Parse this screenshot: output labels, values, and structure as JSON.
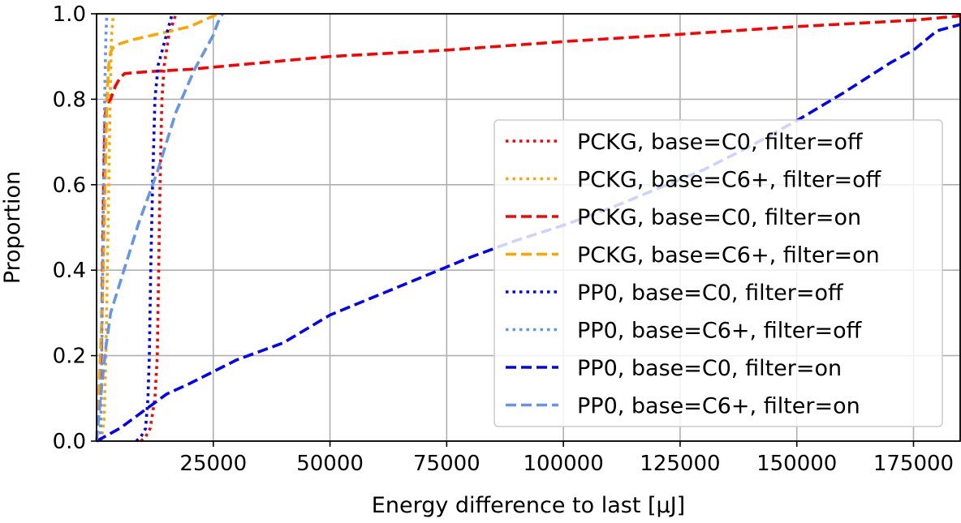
{
  "chart_data": {
    "type": "line",
    "title": "",
    "xlabel": "Energy difference to last [µJ]",
    "ylabel": "Proportion",
    "xlim": [
      0,
      185000
    ],
    "ylim": [
      0,
      1.0
    ],
    "x_ticks": [
      25000,
      50000,
      75000,
      100000,
      125000,
      150000,
      175000
    ],
    "y_ticks": [
      0.0,
      0.2,
      0.4,
      0.6,
      0.8,
      1.0
    ],
    "grid": true,
    "legend_position": "center-right",
    "series": [
      {
        "name": "PCKG, base=C0, filter=off",
        "color": "#ff0000",
        "dash": "dotted",
        "x": [
          9500,
          10500,
          11500,
          12500,
          13000,
          13300,
          13600,
          14000,
          14500,
          15500,
          17000
        ],
        "y": [
          0.0,
          0.01,
          0.03,
          0.1,
          0.2,
          0.4,
          0.6,
          0.8,
          0.88,
          0.95,
          1.0
        ]
      },
      {
        "name": "PCKG, base=C6+, filter=off",
        "color": "#ffa500",
        "dash": "dotted",
        "x": [
          1000,
          1600,
          2000,
          2300,
          2600,
          2900,
          3200,
          3600
        ],
        "y": [
          0.0,
          0.05,
          0.2,
          0.4,
          0.6,
          0.8,
          0.95,
          1.0
        ]
      },
      {
        "name": "PCKG, base=C0, filter=on",
        "color": "#ff0000",
        "dash": "dashed",
        "x": [
          0,
          1000,
          1500,
          1800,
          2200,
          3000,
          4000,
          5000,
          6000,
          8000,
          12000,
          20000,
          30000,
          50000,
          75000,
          100000,
          125000,
          150000,
          175000,
          185000
        ],
        "y": [
          0.0,
          0.2,
          0.6,
          0.76,
          0.79,
          0.8,
          0.83,
          0.85,
          0.86,
          0.862,
          0.865,
          0.87,
          0.88,
          0.9,
          0.915,
          0.935,
          0.952,
          0.97,
          0.985,
          0.995
        ]
      },
      {
        "name": "PCKG, base=C6+, filter=on",
        "color": "#ffa500",
        "dash": "dashed",
        "x": [
          0,
          1200,
          1800,
          2200,
          2600,
          3000,
          3500,
          5000,
          8000,
          12000,
          16000,
          20000,
          24000,
          26000
        ],
        "y": [
          0.0,
          0.3,
          0.6,
          0.8,
          0.88,
          0.91,
          0.92,
          0.93,
          0.94,
          0.95,
          0.96,
          0.97,
          0.99,
          1.0
        ]
      },
      {
        "name": "PP0, base=C0, filter=off",
        "color": "#0000ff",
        "dash": "dotted",
        "x": [
          8500,
          9500,
          10500,
          11000,
          11300,
          11600,
          12000,
          12500,
          13200,
          14200,
          15200,
          16200
        ],
        "y": [
          0.0,
          0.01,
          0.03,
          0.1,
          0.2,
          0.4,
          0.6,
          0.8,
          0.88,
          0.92,
          0.96,
          1.0
        ]
      },
      {
        "name": "PP0, base=C6+, filter=off",
        "color": "#6495ed",
        "dash": "dotted",
        "x": [
          800,
          1000,
          1200,
          1400,
          1600,
          1800,
          2000,
          2200
        ],
        "y": [
          0.0,
          0.1,
          0.3,
          0.5,
          0.7,
          0.85,
          0.95,
          1.0
        ]
      },
      {
        "name": "PP0, base=C0, filter=on",
        "color": "#0000ff",
        "dash": "dashed",
        "x": [
          0,
          5000,
          10000,
          15000,
          20000,
          30000,
          40000,
          50000,
          60000,
          70000,
          80000,
          90000,
          100000,
          110000,
          120000,
          130000,
          140000,
          150000,
          160000,
          170000,
          175000,
          180000,
          185000
        ],
        "y": [
          0.0,
          0.03,
          0.07,
          0.11,
          0.135,
          0.19,
          0.23,
          0.295,
          0.34,
          0.385,
          0.43,
          0.47,
          0.505,
          0.545,
          0.59,
          0.635,
          0.69,
          0.75,
          0.815,
          0.885,
          0.915,
          0.96,
          0.975
        ]
      },
      {
        "name": "PP0, base=C6+, filter=on",
        "color": "#6495ed",
        "dash": "dashed",
        "x": [
          0,
          1000,
          2000,
          3000,
          5000,
          7000,
          9000,
          11000,
          13000,
          15000,
          17000,
          19000,
          21000,
          23000,
          25000,
          26000,
          27000
        ],
        "y": [
          0.0,
          0.12,
          0.22,
          0.3,
          0.37,
          0.44,
          0.51,
          0.57,
          0.63,
          0.7,
          0.77,
          0.82,
          0.87,
          0.91,
          0.95,
          0.98,
          1.0
        ]
      }
    ]
  }
}
